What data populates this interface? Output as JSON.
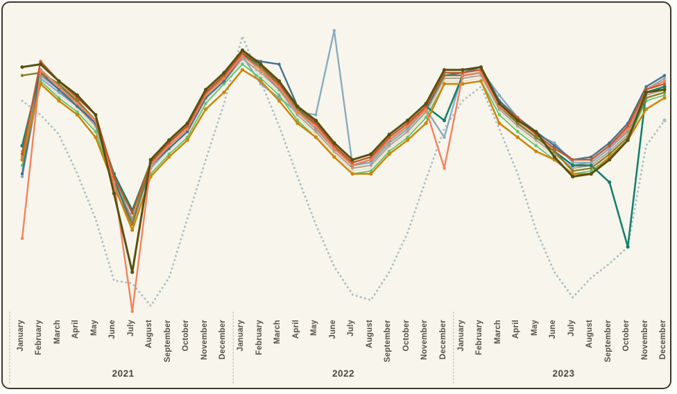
{
  "frame": {
    "background_color": "#f7f5ec",
    "border_color": "#3a372e",
    "separator_color": "#ccc6b8"
  },
  "chart_data": {
    "type": "line",
    "title": "",
    "xlabel": "",
    "ylabel": "",
    "ylim": [
      0,
      100
    ],
    "grid": false,
    "legend": "none",
    "month_labels": [
      "January",
      "February",
      "March",
      "April",
      "May",
      "June",
      "July",
      "August",
      "September",
      "October",
      "November",
      "December"
    ],
    "year_labels": [
      "2021",
      "2022",
      "2023"
    ],
    "series": [
      {
        "name": "dashed-gray",
        "color": "#aabfc5",
        "line_style": "dotted",
        "width": 3,
        "values": [
          75,
          70,
          63,
          49,
          33,
          11,
          10,
          2,
          12,
          33,
          54,
          74,
          98,
          82,
          66,
          48,
          31,
          16,
          6,
          4,
          14,
          28,
          47,
          65,
          75,
          80,
          65,
          49,
          29,
          14,
          5,
          12,
          17,
          23,
          59,
          68
        ]
      },
      {
        "name": "cream",
        "color": "#e9e1cd",
        "line_style": "solid",
        "width": 2,
        "values": [
          51,
          82,
          77,
          72,
          65,
          46,
          32,
          50,
          57,
          63,
          75,
          81,
          89,
          84,
          78,
          69,
          63,
          56,
          50,
          51,
          58,
          63,
          70,
          82,
          82,
          83,
          71,
          65,
          60,
          55,
          50,
          51,
          56,
          62,
          76,
          78
        ]
      },
      {
        "name": "tan",
        "color": "#b5a48e",
        "line_style": "solid",
        "width": 2.2,
        "values": [
          57,
          83,
          78,
          73,
          66,
          46,
          32,
          51,
          58,
          64,
          76,
          82,
          90,
          85,
          79,
          70,
          64,
          57,
          51,
          52,
          59,
          64,
          71,
          83,
          83,
          84,
          72,
          66,
          61,
          56,
          51,
          52,
          57,
          63,
          77,
          79
        ]
      },
      {
        "name": "gray",
        "color": "#9a948a",
        "line_style": "solid",
        "width": 2,
        "values": [
          55,
          84,
          79,
          74,
          67,
          47,
          33,
          52,
          59,
          65,
          77,
          83,
          91,
          86,
          79,
          71,
          65,
          58,
          52,
          53,
          60,
          65,
          72,
          84,
          84,
          85,
          73,
          67,
          62,
          57,
          52,
          53,
          58,
          64,
          78,
          80
        ]
      },
      {
        "name": "steel-blue",
        "color": "#87abbe",
        "line_style": "solid",
        "width": 2.4,
        "values": [
          48,
          83,
          78,
          73,
          67,
          47,
          31,
          51,
          58,
          64,
          76,
          82,
          91,
          81,
          76,
          71,
          70,
          100,
          52,
          53,
          60,
          65,
          72,
          62,
          85,
          86,
          77,
          69,
          63,
          60,
          53,
          53,
          58,
          65,
          79,
          83
        ]
      },
      {
        "name": "light-green",
        "color": "#5cc46f",
        "line_style": "solid",
        "width": 1.8,
        "values": [
          52,
          82,
          76,
          71,
          64,
          45,
          36,
          49,
          56,
          62,
          74,
          81,
          88,
          83,
          77,
          68,
          62,
          55,
          49,
          50,
          57,
          62,
          69,
          81,
          81,
          82,
          70,
          64,
          59,
          54,
          49,
          50,
          55,
          61,
          75,
          77
        ]
      },
      {
        "name": "slate-blue",
        "color": "#48708a",
        "line_style": "solid",
        "width": 2.4,
        "values": [
          49,
          85,
          79,
          73,
          67,
          47,
          31,
          52,
          58,
          64,
          76,
          82,
          91,
          89,
          88,
          73,
          66,
          58,
          52,
          54,
          61,
          66,
          72,
          84,
          85,
          87,
          75,
          69,
          64,
          59,
          54,
          55,
          60,
          67,
          80,
          84
        ]
      },
      {
        "name": "teal",
        "color": "#12806a",
        "line_style": "solid",
        "width": 2.6,
        "values": [
          59,
          86,
          80,
          75,
          68,
          49,
          36,
          53,
          60,
          66,
          77,
          84,
          92,
          87,
          81,
          72,
          67,
          59,
          52,
          54,
          61,
          66,
          73,
          68,
          84,
          85,
          73,
          67,
          62,
          57,
          52,
          52,
          46,
          23,
          78,
          80
        ]
      },
      {
        "name": "olive",
        "color": "#8a7d2b",
        "line_style": "solid",
        "width": 2.4,
        "values": [
          84,
          85,
          81,
          75,
          68,
          44,
          31,
          53,
          60,
          66,
          77,
          84,
          91,
          87,
          80,
          72,
          66,
          58,
          53,
          55,
          61,
          66,
          73,
          84,
          84,
          85,
          73,
          67,
          62,
          57,
          50,
          51,
          56,
          62,
          76,
          78
        ]
      },
      {
        "name": "mustard",
        "color": "#cd860c",
        "line_style": "solid",
        "width": 2.6,
        "values": [
          54,
          81,
          75,
          70,
          62,
          45,
          29,
          48,
          55,
          61,
          72,
          78,
          86,
          82,
          75,
          67,
          62,
          55,
          49,
          49,
          56,
          61,
          67,
          81,
          81,
          82,
          67,
          62,
          57,
          54,
          49,
          49,
          55,
          61,
          72,
          76
        ]
      },
      {
        "name": "salmon",
        "color": "#f5815d",
        "line_style": "solid",
        "width": 2.4,
        "values": [
          26,
          86,
          80,
          74,
          68,
          46,
          0,
          52,
          59,
          65,
          77,
          83,
          91,
          86,
          80,
          71,
          66,
          58,
          52,
          54,
          61,
          66,
          72,
          51,
          84,
          85,
          73,
          68,
          63,
          58,
          54,
          54,
          59,
          65,
          79,
          82
        ]
      },
      {
        "name": "rust",
        "color": "#c2592e",
        "line_style": "solid",
        "width": 2.4,
        "values": [
          56,
          89,
          82,
          76,
          70,
          48,
          35,
          53,
          60,
          66,
          78,
          84,
          92,
          88,
          81,
          73,
          67,
          59,
          53,
          55,
          62,
          67,
          73,
          85,
          85,
          86,
          74,
          69,
          63,
          58,
          54,
          54,
          59,
          66,
          79,
          81
        ]
      },
      {
        "name": "dark-olive",
        "color": "#57500f",
        "line_style": "solid",
        "width": 3,
        "values": [
          87,
          88,
          82,
          77,
          70,
          42,
          14,
          54,
          61,
          67,
          79,
          85,
          93,
          88,
          82,
          73,
          68,
          60,
          54,
          56,
          63,
          68,
          74,
          86,
          86,
          87,
          74,
          68,
          64,
          55,
          48,
          49,
          54,
          61,
          78,
          79
        ]
      }
    ]
  }
}
